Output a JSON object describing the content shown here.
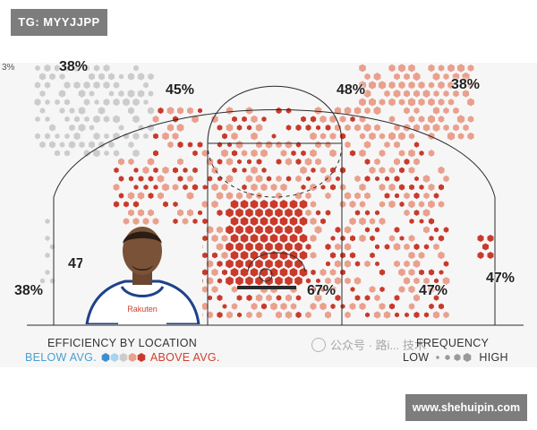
{
  "top_tag": "TG: MYYJJPP",
  "bottom_tag": "www.shehuipin.com",
  "watermark": "公众号 · 路i... 技术",
  "top_left_fragment": "3%",
  "chart_data": {
    "type": "heatmap",
    "title": "",
    "zones": [
      {
        "name": "left corner three",
        "value": "38%"
      },
      {
        "name": "left wing three",
        "value": "38%"
      },
      {
        "name": "left elbow",
        "value": "45%"
      },
      {
        "name": "top of key three",
        "value": "48%"
      },
      {
        "name": "right wing three",
        "value": "38%"
      },
      {
        "name": "left baseline mid-range",
        "value": "47%"
      },
      {
        "name": "restricted area",
        "value": "67%"
      },
      {
        "name": "right baseline mid-range",
        "value": "47%"
      },
      {
        "name": "right corner three",
        "value": "47%"
      }
    ],
    "legend": {
      "efficiency_title": "EFFICIENCY BY LOCATION",
      "below_label": "BELOW AVG.",
      "above_label": "ABOVE AVG.",
      "frequency_title": "FREQUENCY",
      "low_label": "LOW",
      "high_label": "HIGH"
    },
    "colors": {
      "below_strong": "#3b8fd1",
      "below_light": "#a9d3ee",
      "neutral": "#cccccc",
      "above_light": "#e9a08d",
      "above_strong": "#c93a2b"
    }
  }
}
